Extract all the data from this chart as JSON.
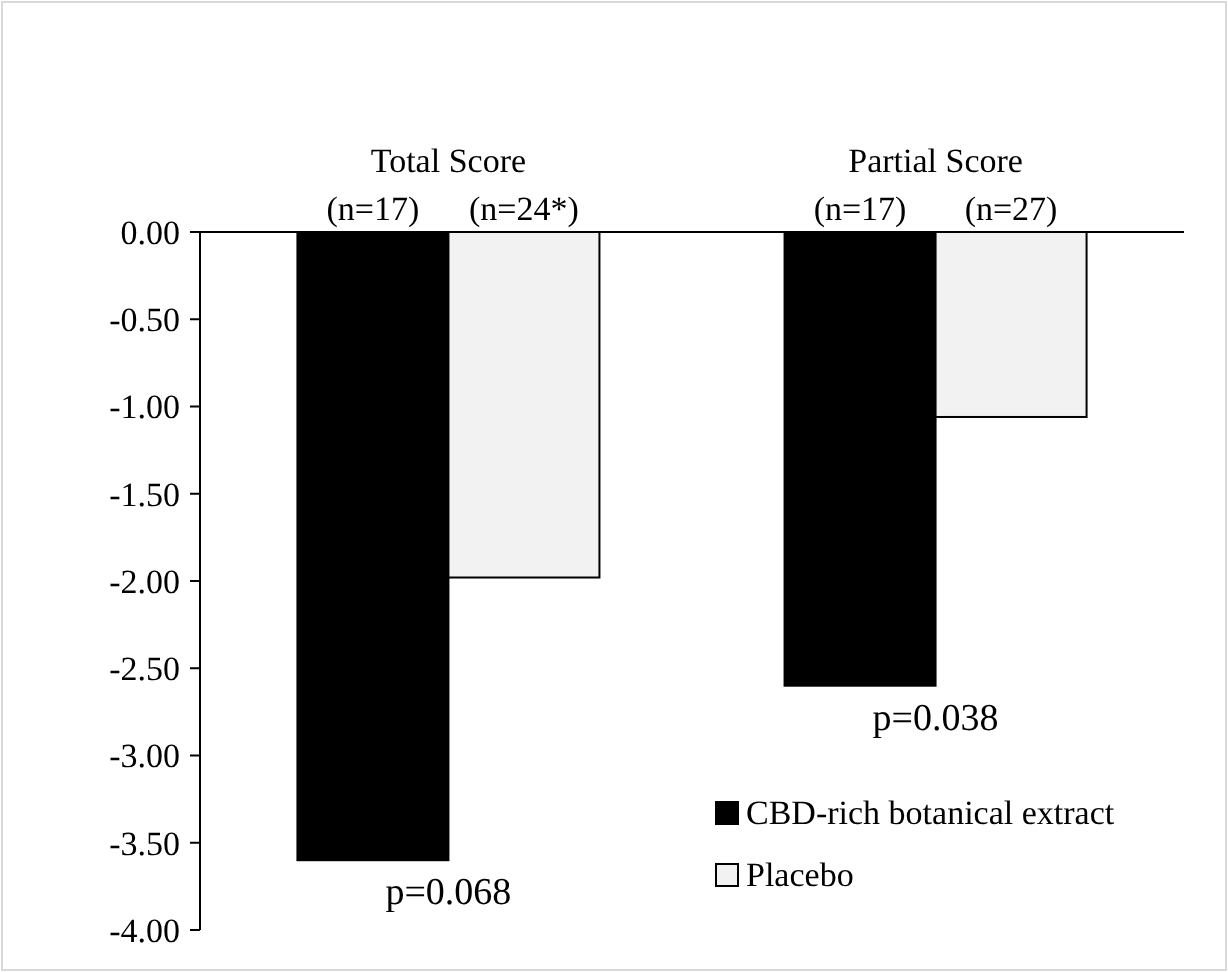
{
  "chart_data": {
    "type": "bar",
    "categories": [
      "Total Score",
      "Partial Score"
    ],
    "series": [
      {
        "name": "CBD-rich botanical extract",
        "color": "#000000",
        "values": [
          -3.6,
          -2.6
        ]
      },
      {
        "name": "Placebo",
        "color": "#f2f2f2",
        "values": [
          -1.98,
          -1.06
        ]
      }
    ],
    "ylim": [
      -4,
      0
    ],
    "yticks": [
      {
        "value": 0,
        "label": "0.00"
      },
      {
        "value": -0.5,
        "label": "-0.50"
      },
      {
        "value": -1,
        "label": "-1.00"
      },
      {
        "value": -1.5,
        "label": "-1.50"
      },
      {
        "value": -2,
        "label": "-2.00"
      },
      {
        "value": -2.5,
        "label": "-2.50"
      },
      {
        "value": -3,
        "label": "-3.00"
      },
      {
        "value": -3.5,
        "label": "-3.50"
      },
      {
        "value": -4,
        "label": "-4.00"
      }
    ],
    "annotations": [
      "(n=17)",
      "(n=24*)",
      "(n=17)",
      "(n=27)",
      {
        "text": "p=0.068",
        "x": "Total Score",
        "y": -3.6
      },
      {
        "text": "p=0.038",
        "x": "Partial Score",
        "y": -2.6
      }
    ],
    "grid": false,
    "legend": "bottom right"
  }
}
